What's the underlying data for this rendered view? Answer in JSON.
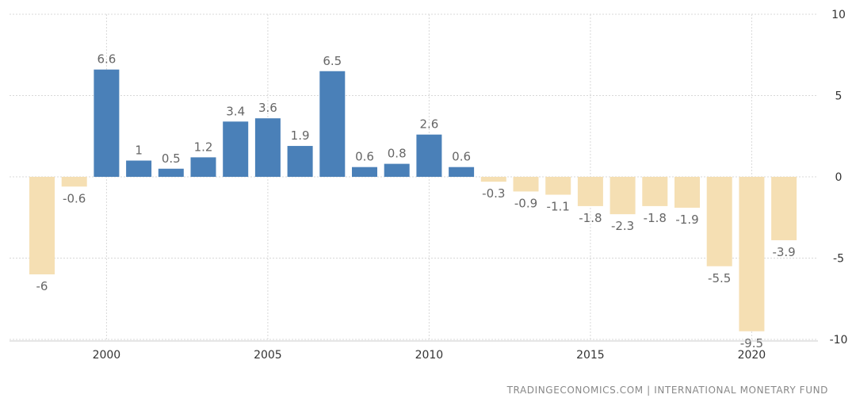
{
  "chart_data": {
    "type": "bar",
    "x": [
      1998,
      1999,
      2000,
      2001,
      2002,
      2003,
      2004,
      2005,
      2006,
      2007,
      2008,
      2009,
      2010,
      2011,
      2012,
      2013,
      2014,
      2015,
      2016,
      2017,
      2018,
      2019,
      2020,
      2021
    ],
    "values": [
      -6,
      -0.6,
      6.6,
      1,
      0.5,
      1.2,
      3.4,
      3.6,
      1.9,
      6.5,
      0.6,
      0.8,
      2.6,
      0.6,
      -0.3,
      -0.9,
      -1.1,
      -1.8,
      -2.3,
      -1.8,
      -1.9,
      -5.5,
      -9.5,
      -3.9
    ],
    "labels": [
      "-6",
      "-0.6",
      "6.6",
      "1",
      "0.5",
      "1.2",
      "3.4",
      "3.6",
      "1.9",
      "6.5",
      "0.6",
      "0.8",
      "2.6",
      "0.6",
      "-0.3",
      "-0.9",
      "-1.1",
      "-1.8",
      "-2.3",
      "-1.8",
      "-1.9",
      "-5.5",
      "-9.5",
      "-3.9"
    ],
    "xticks": [
      2000,
      2005,
      2010,
      2015,
      2020
    ],
    "yticks": [
      10,
      5,
      0,
      -5,
      -10
    ],
    "ylim": [
      -10,
      10
    ],
    "y_axis_side": "right",
    "grid": true,
    "title": "",
    "xlabel": "",
    "ylabel": "",
    "colors": {
      "positive": "#4a80b8",
      "negative": "#f5dfb3",
      "grid": "#d8d8d8",
      "tick_text": "#333333",
      "label_text": "#666666"
    }
  },
  "source_text": "TRADINGECONOMICS.COM | INTERNATIONAL MONETARY FUND"
}
